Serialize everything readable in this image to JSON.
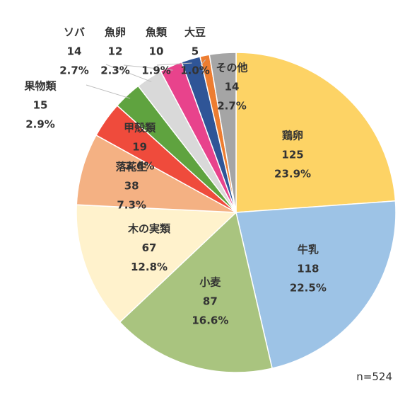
{
  "chart_data": {
    "type": "pie",
    "start_angle_deg": 0,
    "direction": "clockwise",
    "slices": [
      {
        "label": "鶏卵",
        "value": 125,
        "percent": "23.9%",
        "color": "#FDD365"
      },
      {
        "label": "牛乳",
        "value": 118,
        "percent": "22.5%",
        "color": "#9DC3E6"
      },
      {
        "label": "小麦",
        "value": 87,
        "percent": "16.6%",
        "color": "#A9C47F"
      },
      {
        "label": "木の実類",
        "value": 67,
        "percent": "12.8%",
        "color": "#FFF2CC"
      },
      {
        "label": "落花生",
        "value": 38,
        "percent": "7.3%",
        "color": "#F4B183"
      },
      {
        "label": "甲殻類",
        "value": 19,
        "percent": "3.6%",
        "color": "#EF4B3C"
      },
      {
        "label": "果物類",
        "value": 15,
        "percent": "2.9%",
        "color": "#5FA33F"
      },
      {
        "label": "ソバ",
        "value": 14,
        "percent": "2.7%",
        "color": "#D9D9D9"
      },
      {
        "label": "魚卵",
        "value": 12,
        "percent": "2.3%",
        "color": "#E8438C"
      },
      {
        "label": "魚類",
        "value": 10,
        "percent": "1.9%",
        "color": "#2F5597"
      },
      {
        "label": "大豆",
        "value": 5,
        "percent": "1.0%",
        "color": "#ED7D31"
      },
      {
        "label": "その他",
        "value": 14,
        "percent": "2.7%",
        "color": "#A5A5A5"
      }
    ],
    "total_label": "n=524"
  }
}
